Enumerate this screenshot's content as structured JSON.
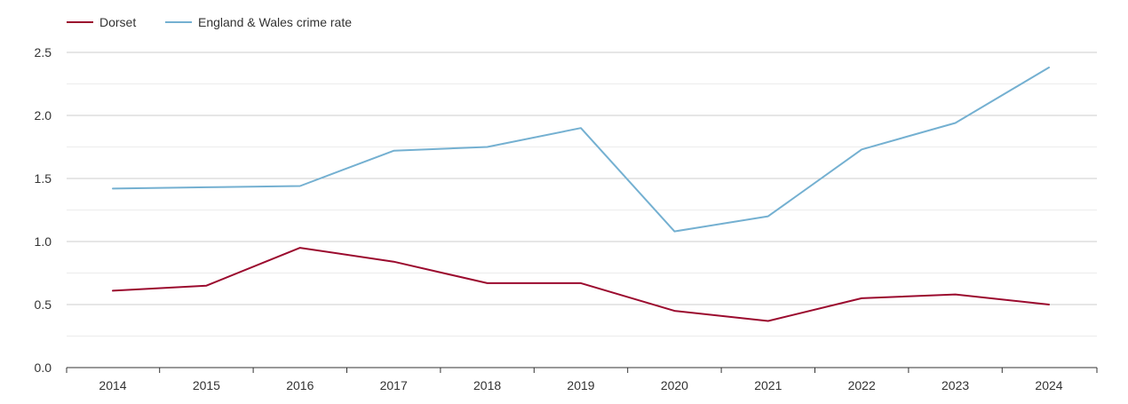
{
  "chart_data": {
    "type": "line",
    "title": "",
    "xlabel": "",
    "ylabel": "",
    "categories": [
      "2014",
      "2015",
      "2016",
      "2017",
      "2018",
      "2019",
      "2020",
      "2021",
      "2022",
      "2023",
      "2024"
    ],
    "ylim": [
      0,
      2.5
    ],
    "y_ticks": [
      "0.0",
      "0.5",
      "1.0",
      "1.5",
      "2.0",
      "2.5"
    ],
    "grid": true,
    "legend_position": "top-left",
    "series": [
      {
        "name": "Dorset",
        "color": "#9b0a2e",
        "values": [
          0.61,
          0.65,
          0.95,
          0.84,
          0.67,
          0.67,
          0.45,
          0.37,
          0.55,
          0.58,
          0.5
        ]
      },
      {
        "name": "England & Wales crime rate",
        "color": "#74b0d1",
        "values": [
          1.42,
          1.43,
          1.44,
          1.72,
          1.75,
          1.9,
          1.08,
          1.2,
          1.73,
          1.94,
          2.38
        ]
      }
    ]
  }
}
